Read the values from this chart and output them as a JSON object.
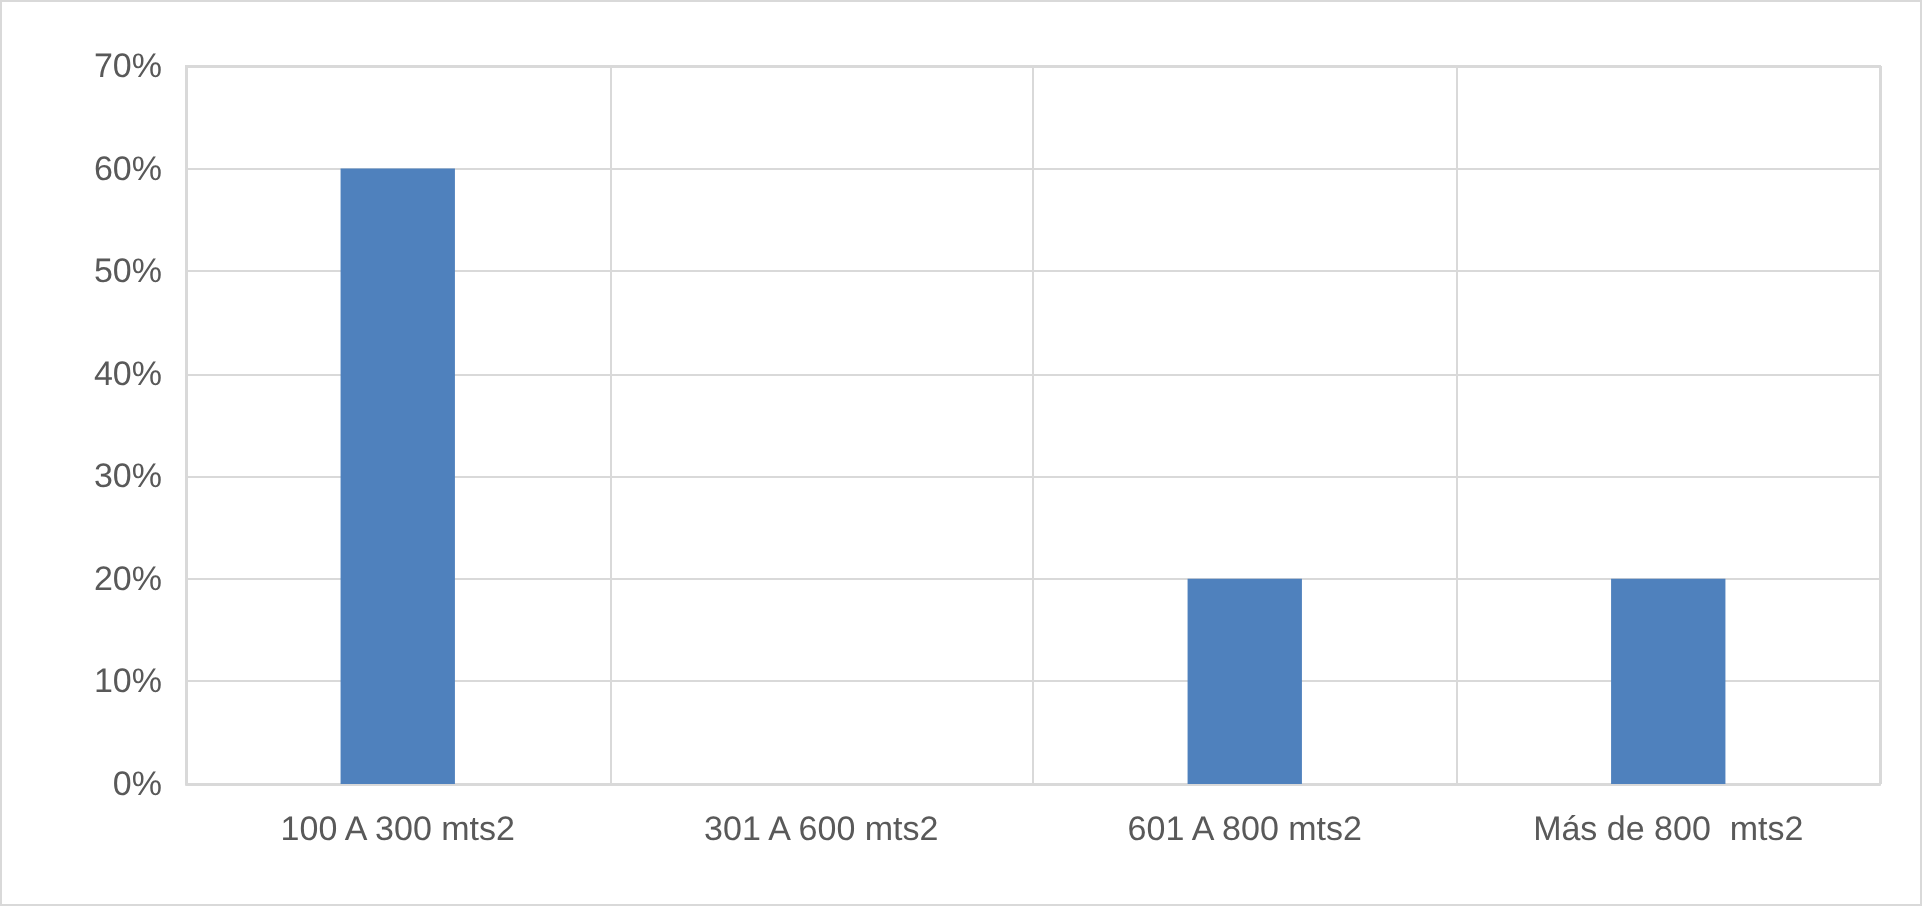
{
  "chart_data": {
    "type": "bar",
    "categories": [
      "100 A 300 mts2",
      "301 A 600 mts2",
      "601 A 800 mts2",
      "Más de 800  mts2"
    ],
    "values": [
      60,
      0,
      20,
      20
    ],
    "color": "#4f81bd",
    "ylim": [
      0,
      70
    ],
    "yticks": [
      {
        "value": 0,
        "label": "0%"
      },
      {
        "value": 10,
        "label": "10%"
      },
      {
        "value": 20,
        "label": "20%"
      },
      {
        "value": 30,
        "label": "30%"
      },
      {
        "value": 40,
        "label": "40%"
      },
      {
        "value": 50,
        "label": "50%"
      },
      {
        "value": 60,
        "label": "60%"
      },
      {
        "value": 70,
        "label": "70%"
      }
    ],
    "grid": true
  }
}
